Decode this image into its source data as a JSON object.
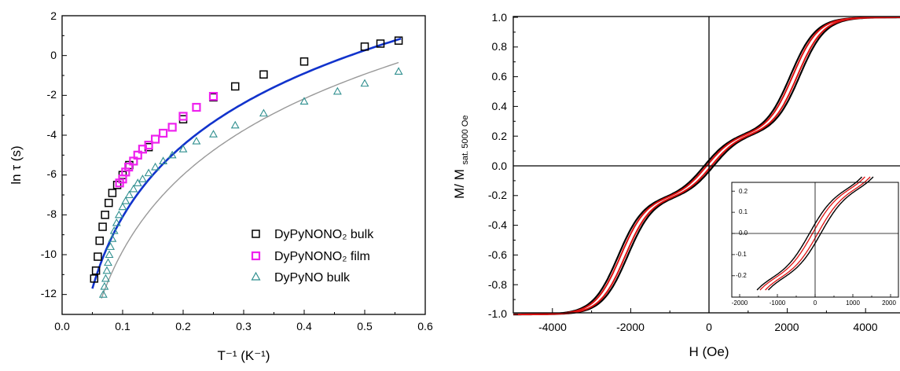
{
  "chart_data": [
    {
      "type": "scatter",
      "xlabel": "T⁻¹ (K⁻¹)",
      "ylabel": "ln τ (s)",
      "xlim": [
        0,
        0.6
      ],
      "ylim": [
        -13,
        2
      ],
      "x_ticks": [
        "0.0",
        "0.1",
        "0.2",
        "0.3",
        "0.4",
        "0.5",
        "0.6"
      ],
      "y_ticks": [
        "-12",
        "-10",
        "-8",
        "-6",
        "-4",
        "-2",
        "0",
        "2"
      ],
      "legend_position": "bottom-right",
      "series": [
        {
          "name": "DyPyNONO₂ bulk",
          "marker": "square",
          "color": "#000000",
          "points": [
            [
              0.053,
              -11.2
            ],
            [
              0.056,
              -10.8
            ],
            [
              0.059,
              -10.1
            ],
            [
              0.062,
              -9.3
            ],
            [
              0.067,
              -8.6
            ],
            [
              0.071,
              -8.0
            ],
            [
              0.077,
              -7.4
            ],
            [
              0.083,
              -6.9
            ],
            [
              0.091,
              -6.5
            ],
            [
              0.1,
              -6.0
            ],
            [
              0.111,
              -5.5
            ],
            [
              0.125,
              -5.0
            ],
            [
              0.143,
              -4.6
            ],
            [
              0.167,
              -3.9
            ],
            [
              0.2,
              -3.2
            ],
            [
              0.25,
              -2.1
            ],
            [
              0.286,
              -1.55
            ],
            [
              0.333,
              -0.95
            ],
            [
              0.4,
              -0.3
            ],
            [
              0.5,
              0.45
            ],
            [
              0.526,
              0.6
            ],
            [
              0.556,
              0.75
            ]
          ]
        },
        {
          "name": "DyPyNONO₂ film",
          "marker": "square",
          "color": "#ee22ee",
          "points": [
            [
              0.095,
              -6.4
            ],
            [
              0.1,
              -6.2
            ],
            [
              0.105,
              -5.85
            ],
            [
              0.11,
              -5.6
            ],
            [
              0.118,
              -5.3
            ],
            [
              0.125,
              -5.0
            ],
            [
              0.133,
              -4.7
            ],
            [
              0.143,
              -4.5
            ],
            [
              0.154,
              -4.2
            ],
            [
              0.167,
              -3.9
            ],
            [
              0.182,
              -3.6
            ],
            [
              0.2,
              -3.05
            ],
            [
              0.222,
              -2.6
            ],
            [
              0.25,
              -2.05
            ]
          ]
        },
        {
          "name": "DyPyNO bulk",
          "marker": "triangle",
          "color": "#2f8f8f",
          "points": [
            [
              0.068,
              -12.0
            ],
            [
              0.07,
              -11.6
            ],
            [
              0.072,
              -11.2
            ],
            [
              0.074,
              -10.8
            ],
            [
              0.076,
              -10.4
            ],
            [
              0.078,
              -10.0
            ],
            [
              0.08,
              -9.6
            ],
            [
              0.083,
              -9.2
            ],
            [
              0.086,
              -8.8
            ],
            [
              0.09,
              -8.4
            ],
            [
              0.094,
              -8.0
            ],
            [
              0.1,
              -7.6
            ],
            [
              0.105,
              -7.3
            ],
            [
              0.111,
              -7.0
            ],
            [
              0.118,
              -6.7
            ],
            [
              0.125,
              -6.4
            ],
            [
              0.133,
              -6.2
            ],
            [
              0.143,
              -5.9
            ],
            [
              0.154,
              -5.6
            ],
            [
              0.167,
              -5.3
            ],
            [
              0.182,
              -5.0
            ],
            [
              0.2,
              -4.7
            ],
            [
              0.222,
              -4.3
            ],
            [
              0.25,
              -3.95
            ],
            [
              0.286,
              -3.5
            ],
            [
              0.333,
              -2.9
            ],
            [
              0.4,
              -2.3
            ],
            [
              0.455,
              -1.8
            ],
            [
              0.5,
              -1.4
            ],
            [
              0.556,
              -0.8
            ]
          ]
        }
      ],
      "fits": [
        {
          "color": "#1133cc",
          "x": [
            0.05,
            0.56
          ],
          "y_at_start": -11.7,
          "y_at_end": 0.85
        },
        {
          "color": "#999999",
          "x": [
            0.065,
            0.556
          ],
          "y_at_start": -12.2,
          "y_at_end": -0.35
        }
      ]
    },
    {
      "type": "line",
      "xlabel": "H (Oe)",
      "ylabel": "M/ M",
      "ylabel_subscript": "sat. 5000 Oe",
      "xlim": [
        -5000,
        5000
      ],
      "ylim": [
        -1.0,
        1.0
      ],
      "x_ticks": [
        "-4000",
        "-2000",
        "0",
        "2000",
        "4000"
      ],
      "y_ticks": [
        "1.0",
        "0.8",
        "0.6",
        "0.4",
        "0.2",
        "0.0",
        "-0.2",
        "-0.4",
        "-0.6",
        "-0.8",
        "-1.0"
      ],
      "series_colors": [
        "#000000",
        "#dd1111"
      ],
      "inset": {
        "xlim": [
          -2000,
          2000
        ],
        "ylim": [
          -0.27,
          0.27
        ],
        "x_ticks": [
          "-2000",
          "-1000",
          "0",
          "1000",
          "2000"
        ],
        "y_ticks": [
          "0.2",
          "0.1",
          "0.0",
          "-0.1",
          "-0.2"
        ]
      }
    }
  ]
}
